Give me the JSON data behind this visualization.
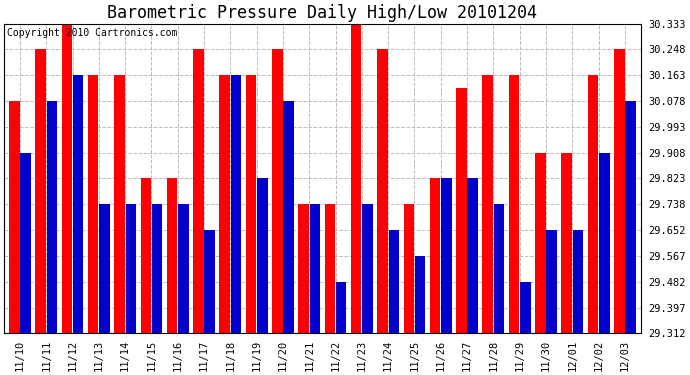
{
  "title": "Barometric Pressure Daily High/Low 20101204",
  "copyright": "Copyright 2010 Cartronics.com",
  "dates": [
    "11/10",
    "11/11",
    "11/12",
    "11/13",
    "11/14",
    "11/15",
    "11/16",
    "11/17",
    "11/18",
    "11/19",
    "11/20",
    "11/21",
    "11/22",
    "11/23",
    "11/24",
    "11/25",
    "11/26",
    "11/27",
    "11/28",
    "11/29",
    "11/30",
    "12/01",
    "12/02",
    "12/03"
  ],
  "highs": [
    30.078,
    30.248,
    30.333,
    30.163,
    30.163,
    29.823,
    29.823,
    30.248,
    30.163,
    30.163,
    30.248,
    29.738,
    29.738,
    30.333,
    30.248,
    29.738,
    29.823,
    30.12,
    30.163,
    30.163,
    29.908,
    29.908,
    30.163,
    30.248
  ],
  "lows": [
    29.908,
    30.078,
    30.163,
    29.738,
    29.738,
    29.738,
    29.738,
    29.652,
    30.163,
    29.823,
    30.078,
    29.738,
    29.482,
    29.738,
    29.652,
    29.567,
    29.823,
    29.823,
    29.738,
    29.482,
    29.652,
    29.652,
    29.908,
    30.078
  ],
  "high_color": "#ff0000",
  "low_color": "#0000cc",
  "bg_color": "#ffffff",
  "plot_bg_color": "#ffffff",
  "grid_color": "#bbbbbb",
  "ymin": 29.312,
  "ymax": 30.333,
  "yticks": [
    29.312,
    29.397,
    29.482,
    29.567,
    29.652,
    29.738,
    29.823,
    29.908,
    29.993,
    30.078,
    30.163,
    30.248,
    30.333
  ],
  "title_fontsize": 12,
  "copyright_fontsize": 7,
  "tick_fontsize": 7.5,
  "bar_width": 0.4,
  "bar_gap": 0.03
}
